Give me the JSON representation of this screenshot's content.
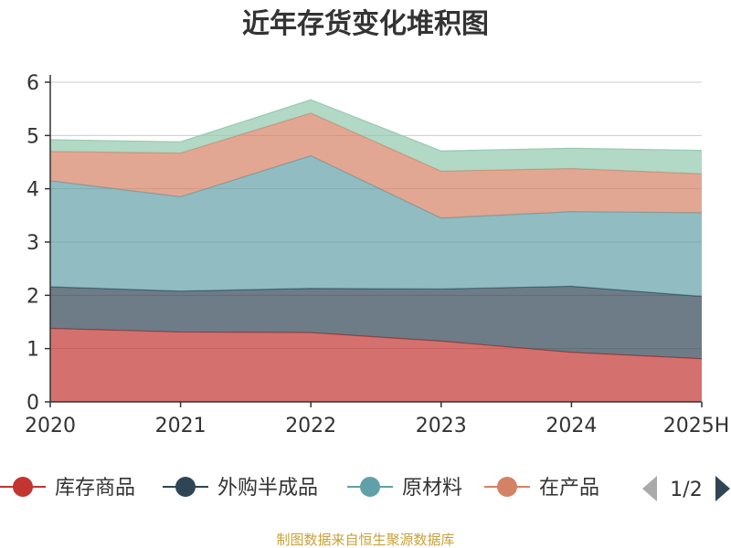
{
  "chart_data": {
    "type": "area",
    "stacked": true,
    "title": "近年存货变化堆积图",
    "categories": [
      "2020",
      "2021",
      "2022",
      "2023",
      "2024",
      "2025H"
    ],
    "ylim": [
      0,
      6
    ],
    "yticks": [
      "0",
      "1",
      "2",
      "3",
      "4",
      "5",
      "6"
    ],
    "grid": true,
    "series": [
      {
        "name": "库存商品",
        "color": "#c23531",
        "values": [
          1.38,
          1.31,
          1.3,
          1.14,
          0.93,
          0.81
        ]
      },
      {
        "name": "外购半成品",
        "color": "#2f4554",
        "values": [
          0.78,
          0.77,
          0.83,
          0.98,
          1.24,
          1.17
        ]
      },
      {
        "name": "原材料",
        "color": "#61a0a8",
        "values": [
          1.99,
          1.77,
          2.49,
          1.33,
          1.4,
          1.57
        ]
      },
      {
        "name": "在产品",
        "color": "#d48265",
        "values": [
          0.55,
          0.82,
          0.8,
          0.88,
          0.81,
          0.73
        ]
      },
      {
        "name": "",
        "color": "#91c7ae",
        "values": [
          0.22,
          0.21,
          0.25,
          0.38,
          0.38,
          0.44
        ]
      }
    ],
    "legend": {
      "position": "bottom",
      "page": "1/2"
    },
    "source": "制图数据来自恒生聚源数据库"
  }
}
